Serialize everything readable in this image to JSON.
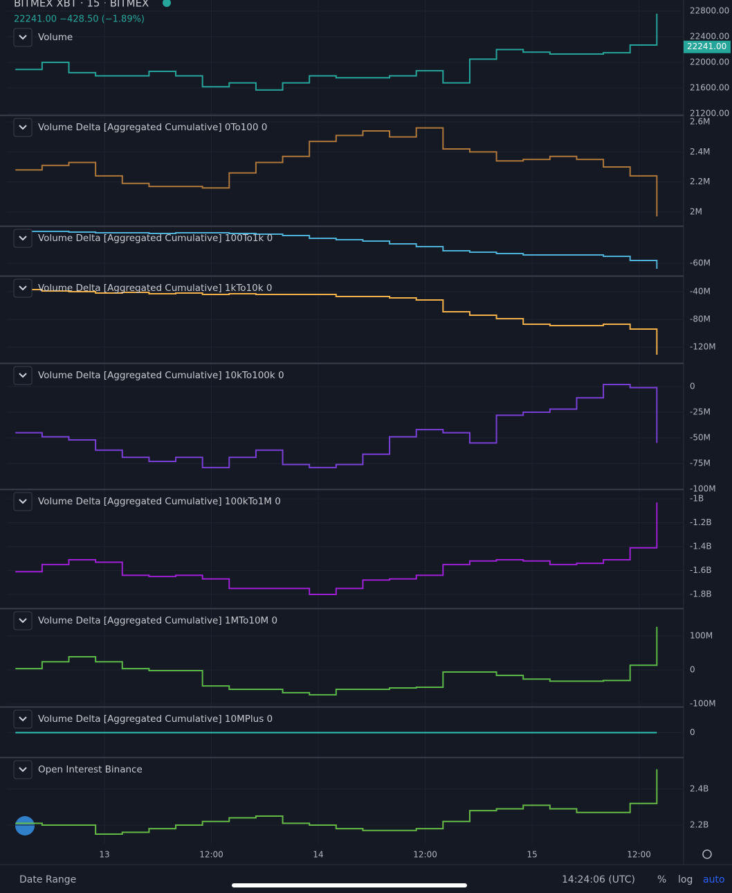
{
  "header": {
    "symbol": "BITMEX XBT · 15 · BITMEX",
    "change": "22241.00  −428.50 (−1.89%)"
  },
  "chart_data": [
    {
      "type": "line",
      "title": "Volume",
      "color": "#26a69a",
      "x": [
        -10,
        -7,
        -4,
        -1,
        2,
        5,
        8,
        11,
        14,
        17,
        20,
        23,
        26,
        29,
        32,
        35,
        38,
        41,
        44,
        47,
        50,
        53,
        56,
        59,
        62
      ],
      "values": [
        21890,
        22000,
        21840,
        21790,
        21790,
        21860,
        21790,
        21620,
        21680,
        21570,
        21680,
        21790,
        21760,
        21760,
        21790,
        21870,
        21680,
        22050,
        22200,
        22160,
        22130,
        22130,
        22150,
        22270,
        22760
      ],
      "xlim": [
        -10.95,
        65
      ],
      "ylim": [
        21190,
        22973
      ],
      "yticks": [
        {
          "value": 22800,
          "label": "22800.00"
        },
        {
          "value": 22400,
          "label": "22400.00"
        },
        {
          "value": 22000,
          "label": "22000.00"
        },
        {
          "value": 21600,
          "label": "21600.00"
        },
        {
          "value": 21200,
          "label": "21200.00"
        }
      ],
      "price_tag": {
        "value": 22241,
        "label": "22241.00"
      }
    },
    {
      "type": "line",
      "title": "Volume Delta [Aggregated Cumulative] 0To100 0",
      "color": "#b0783a",
      "x": [
        -10,
        -7,
        -4,
        -1,
        2,
        5,
        8,
        11,
        14,
        17,
        20,
        23,
        26,
        29,
        32,
        35,
        38,
        41,
        44,
        47,
        50,
        53,
        56,
        59,
        62
      ],
      "values": [
        2280000,
        2310000,
        2330000,
        2240000,
        2190000,
        2170000,
        2170000,
        2160000,
        2260000,
        2330000,
        2370000,
        2470000,
        2510000,
        2540000,
        2500000,
        2560000,
        2420000,
        2400000,
        2340000,
        2350000,
        2370000,
        2350000,
        2300000,
        2240000,
        1970000
      ],
      "xlim": [
        -10.95,
        65
      ],
      "ylim": [
        1907000,
        2637000
      ],
      "yticks": [
        {
          "value": 2600000,
          "label": "2.6M"
        },
        {
          "value": 2400000,
          "label": "2.4M"
        },
        {
          "value": 2200000,
          "label": "2.2M"
        },
        {
          "value": 2000000,
          "label": "2M"
        }
      ]
    },
    {
      "type": "line",
      "title": "Volume Delta [Aggregated Cumulative] 100To1k 0",
      "color": "#4fb3d9",
      "x": [
        -10,
        -7,
        -4,
        -1,
        2,
        5,
        8,
        11,
        14,
        17,
        20,
        23,
        26,
        29,
        32,
        35,
        38,
        41,
        44,
        47,
        50,
        53,
        56,
        59,
        62
      ],
      "values": [
        -37000000,
        -37000000,
        -37500000,
        -38000000,
        -38000000,
        -38500000,
        -38000000,
        -38000000,
        -38500000,
        -39000000,
        -40000000,
        -42000000,
        -43000000,
        -44000000,
        -46000000,
        -48000000,
        -51000000,
        -52000000,
        -53000000,
        -54000000,
        -54000000,
        -54000000,
        -55000000,
        -58000000,
        -64000000
      ],
      "xlim": [
        -10.95,
        65
      ],
      "ylim": [
        -69000000,
        -34000000
      ],
      "yticks": [
        {
          "value": -60000000,
          "label": "-60M"
        }
      ]
    },
    {
      "type": "line",
      "title": "Volume Delta [Aggregated Cumulative] 1kTo10k 0",
      "color": "#f5b24a",
      "x": [
        -10,
        -7,
        -4,
        -1,
        2,
        5,
        8,
        11,
        14,
        17,
        20,
        23,
        26,
        29,
        32,
        35,
        38,
        41,
        44,
        47,
        50,
        53,
        56,
        59,
        62
      ],
      "values": [
        -37000000,
        -39000000,
        -40000000,
        -42000000,
        -41000000,
        -43000000,
        -42000000,
        -44000000,
        -43000000,
        -44000000,
        -44000000,
        -44000000,
        -47000000,
        -47000000,
        -49000000,
        -52000000,
        -69000000,
        -74000000,
        -79000000,
        -87000000,
        -89000000,
        -89000000,
        -87000000,
        -94000000,
        -131000000
      ],
      "xlim": [
        -10.95,
        65
      ],
      "ylim": [
        -143000000,
        -19000000
      ],
      "yticks": [
        {
          "value": -40000000,
          "label": "-40M"
        },
        {
          "value": -80000000,
          "label": "-80M"
        },
        {
          "value": -120000000,
          "label": "-120M"
        }
      ]
    },
    {
      "type": "line",
      "title": "Volume Delta [Aggregated Cumulative] 10kTo100k 0",
      "color": "#7b3fd9",
      "x": [
        -10,
        -7,
        -4,
        -1,
        2,
        5,
        8,
        11,
        14,
        17,
        20,
        23,
        26,
        29,
        32,
        35,
        38,
        41,
        44,
        47,
        50,
        53,
        56,
        59,
        62
      ],
      "values": [
        -45000000,
        -49000000,
        -52000000,
        -62000000,
        -69000000,
        -73000000,
        -69000000,
        -79000000,
        -69000000,
        -62000000,
        -76000000,
        -79000000,
        -76000000,
        -66000000,
        -49000000,
        -42000000,
        -45000000,
        -55000000,
        -28000000,
        -25000000,
        -22000000,
        -11000000,
        2000000,
        -1000000,
        -55000000
      ],
      "xlim": [
        -10.95,
        65
      ],
      "ylim": [
        -100000000,
        21600000
      ],
      "yticks": [
        0,
        {
          "value": -25000000,
          "label": "-25M"
        },
        {
          "value": -50000000,
          "label": "-50M"
        },
        {
          "value": -75000000,
          "label": "-75M"
        },
        {
          "value": -100000000,
          "label": "-100M"
        }
      ]
    },
    {
      "type": "line",
      "title": "Volume Delta [Aggregated Cumulative] 100kTo1M 0",
      "color": "#a020d8",
      "x": [
        -10,
        -7,
        -4,
        -1,
        2,
        5,
        8,
        11,
        14,
        17,
        20,
        23,
        26,
        29,
        32,
        35,
        38,
        41,
        44,
        47,
        50,
        53,
        56,
        59,
        62
      ],
      "values": [
        -1610000000,
        -1550000000,
        -1510000000,
        -1530000000,
        -1640000000,
        -1650000000,
        -1640000000,
        -1670000000,
        -1750000000,
        -1750000000,
        -1750000000,
        -1800000000,
        -1750000000,
        -1680000000,
        -1670000000,
        -1640000000,
        -1550000000,
        -1520000000,
        -1510000000,
        -1520000000,
        -1550000000,
        -1540000000,
        -1510000000,
        -1410000000,
        -1030000000
      ],
      "xlim": [
        -10.95,
        65
      ],
      "ylim": [
        -1916000000,
        -930000000
      ],
      "yticks": [
        {
          "value": -1000000000,
          "label": "-1B"
        },
        {
          "value": -1200000000,
          "label": "-1.2B"
        },
        {
          "value": -1400000000,
          "label": "-1.4B"
        },
        {
          "value": -1600000000,
          "label": "-1.6B"
        },
        {
          "value": -1800000000,
          "label": "-1.8B"
        }
      ]
    },
    {
      "type": "line",
      "title": "Volume Delta [Aggregated Cumulative] 1MTo10M 0",
      "color": "#5cba48",
      "x": [
        -10,
        -7,
        -4,
        -1,
        2,
        5,
        8,
        11,
        14,
        17,
        20,
        23,
        26,
        29,
        32,
        35,
        38,
        41,
        44,
        47,
        50,
        53,
        56,
        59,
        62
      ],
      "values": [
        4000000,
        24000000,
        39000000,
        24000000,
        4000000,
        -2000000,
        -2000000,
        -47000000,
        -57000000,
        -57000000,
        -67000000,
        -73000000,
        -57000000,
        -57000000,
        -53000000,
        -51000000,
        -6000000,
        -6000000,
        -16000000,
        -27000000,
        -33000000,
        -33000000,
        -31000000,
        14000000,
        127000000
      ],
      "xlim": [
        -10.95,
        65
      ],
      "ylim": [
        -108000000,
        177600000
      ],
      "yticks": [
        {
          "value": 100000000,
          "label": "100M"
        },
        0,
        {
          "value": -100000000,
          "label": "-100M"
        }
      ]
    },
    {
      "type": "line",
      "title": "Volume Delta [Aggregated Cumulative] 10MPlus 0",
      "color": "#2ec4b6",
      "x": [
        -10,
        -7,
        -4,
        -1,
        2,
        5,
        8,
        11,
        14,
        17,
        20,
        23,
        26,
        29,
        32,
        35,
        38,
        41,
        44,
        47,
        50,
        53,
        56,
        59,
        62
      ],
      "values": [
        0,
        0,
        0,
        0,
        0,
        0,
        0,
        0,
        0,
        0,
        0,
        0,
        0,
        0,
        0,
        0,
        0,
        0,
        0,
        0,
        0,
        0,
        0,
        0,
        0
      ],
      "xlim": [
        -10.95,
        65
      ],
      "ylim": [
        -1,
        1
      ],
      "yticks": [
        0
      ]
    },
    {
      "type": "line",
      "title": "Open Interest Binance",
      "color": "#66bb46",
      "x": [
        -10,
        -7,
        -4,
        -1,
        2,
        5,
        8,
        11,
        14,
        17,
        20,
        23,
        26,
        29,
        32,
        35,
        38,
        41,
        44,
        47,
        50,
        53,
        56,
        59,
        62
      ],
      "values": [
        2210000000,
        2200000000,
        2200000000,
        2150000000,
        2160000000,
        2180000000,
        2200000000,
        2220000000,
        2240000000,
        2250000000,
        2210000000,
        2200000000,
        2180000000,
        2170000000,
        2170000000,
        2180000000,
        2220000000,
        2280000000,
        2290000000,
        2310000000,
        2290000000,
        2270000000,
        2270000000,
        2320000000,
        2510000000
      ],
      "xlim": [
        -10.95,
        65
      ],
      "ylim": [
        2096000000,
        2569000000
      ],
      "yticks": [
        {
          "value": 2400000000,
          "label": "2.4B"
        },
        {
          "value": 2200000000,
          "label": "2.2B"
        }
      ],
      "xticks": [
        {
          "value": 0,
          "label": "13"
        },
        {
          "value": 12,
          "label": "12:00"
        },
        {
          "value": 24,
          "label": "14"
        },
        {
          "value": 36,
          "label": "12:00"
        },
        {
          "value": 48,
          "label": "15"
        },
        {
          "value": 60,
          "label": "12:00"
        }
      ]
    }
  ],
  "footer": {
    "date_range": "Date Range",
    "time": "14:24:06 (UTC)",
    "buttons": [
      "%",
      "log",
      "auto"
    ]
  }
}
